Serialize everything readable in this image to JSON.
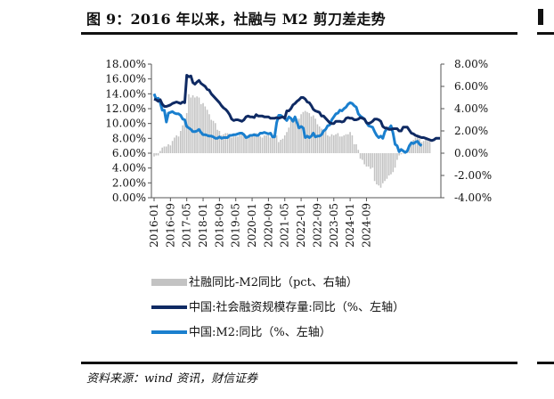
{
  "figure": {
    "title": "图 9：2016 年以来，社融与 M2 剪刀差走势",
    "source": "资料来源：wind 资讯，财信证券"
  },
  "chart_data": {
    "type": "line",
    "title": "",
    "x_ticks": [
      "2016-01",
      "2016-09",
      "2017-05",
      "2018-01",
      "2018-09",
      "2019-05",
      "2020-01",
      "2020-09",
      "2021-05",
      "2022-01",
      "2022-09",
      "2023-05",
      "2024-01",
      "2024-09"
    ],
    "ylim_left": [
      0,
      18
    ],
    "ylim_right": [
      -4,
      8
    ],
    "y_ticks_left": [
      "0.00%",
      "2.00%",
      "4.00%",
      "6.00%",
      "8.00%",
      "10.00%",
      "12.00%",
      "14.00%",
      "16.00%",
      "18.00%"
    ],
    "y_ticks_right": [
      "-4.00%",
      "-2.00%",
      "0.00%",
      "2.00%",
      "4.00%",
      "6.00%",
      "8.00%"
    ],
    "legend_position": "bottom",
    "grid": false,
    "series": [
      {
        "name": "社融同比-M2同比（pct、右轴）",
        "kind": "bar",
        "axis": "right",
        "color": "#c3c3c3",
        "values": [
          -0.3,
          -0.2,
          -0.2,
          0.2,
          0.5,
          0.6,
          0.6,
          0.8,
          0.7,
          1.1,
          1.4,
          1.6,
          1.5,
          2.0,
          2.5,
          2.8,
          3.6,
          5.3,
          5.0,
          5.2,
          5.0,
          5.1,
          5.0,
          4.4,
          4.5,
          4.2,
          3.9,
          3.5,
          3.0,
          2.9,
          2.7,
          2.1,
          2.0,
          1.6,
          1.7,
          1.8,
          1.8,
          1.6,
          1.4,
          1.6,
          1.5,
          1.5,
          1.7,
          1.8,
          1.8,
          1.6,
          1.5,
          1.6,
          1.7,
          1.8,
          1.8,
          1.7,
          1.5,
          1.4,
          1.6,
          1.6,
          1.6,
          1.4,
          1.6,
          1.5,
          1.6,
          1.0,
          1.2,
          1.3,
          1.6,
          1.9,
          2.3,
          3.0,
          3.0,
          3.1,
          3.1,
          3.1,
          3.5,
          3.7,
          3.8,
          3.7,
          3.6,
          3.3,
          3.4,
          3.1,
          2.6,
          2.4,
          2.2,
          2.1,
          2.0,
          1.6,
          1.5,
          1.7,
          1.6,
          1.7,
          1.8,
          1.5,
          1.5,
          1.6,
          1.7,
          1.7,
          1.9,
          1.6,
          0.8,
          0.8,
          0.3,
          -0.5,
          -0.6,
          -1.0,
          -1.2,
          -1.2,
          -1.4,
          -1.3,
          -2.5,
          -2.8,
          -2.9,
          -3.1,
          -2.7,
          -2.5,
          -2.3,
          -2.0,
          -1.9,
          -1.7,
          -1.3,
          -0.6,
          -0.2,
          -0.1,
          0.0,
          0.1,
          0.3,
          0.8,
          0.8,
          1.2,
          1.4,
          1.5,
          1.3,
          1.0,
          1.1,
          1.2,
          1.1,
          1.2
        ]
      },
      {
        "name": "中国:社会融资规模存量:同比（%、左轴）",
        "kind": "line",
        "axis": "left",
        "color": "#0f2a63",
        "values": [
          13.3,
          13.2,
          13.0,
          13.2,
          12.6,
          12.3,
          12.3,
          12.4,
          12.5,
          12.7,
          12.8,
          12.9,
          12.8,
          12.7,
          12.9,
          12.8,
          16.5,
          16.3,
          16.4,
          15.5,
          15.3,
          15.6,
          15.8,
          15.4,
          15.2,
          15.0,
          14.6,
          14.5,
          14.0,
          13.7,
          13.4,
          13.1,
          12.8,
          12.4,
          12.1,
          11.9,
          11.6,
          11.2,
          10.6,
          10.4,
          10.5,
          10.5,
          10.4,
          10.3,
          10.5,
          10.9,
          11.0,
          10.9,
          10.9,
          10.8,
          11.2,
          11.0,
          11.0,
          11.0,
          10.9,
          10.9,
          10.9,
          10.7,
          10.7,
          10.7,
          10.8,
          10.7,
          10.8,
          10.9,
          10.7,
          11.7,
          11.7,
          12.0,
          12.5,
          12.7,
          13.0,
          13.2,
          13.5,
          13.5,
          13.3,
          12.9,
          12.8,
          12.4,
          11.9,
          11.7,
          11.6,
          11.5,
          11.0,
          11.0,
          10.7,
          10.4,
          10.1,
          10.0,
          10.0,
          10.3,
          10.3,
          10.3,
          10.2,
          10.3,
          10.7,
          10.8,
          10.7,
          10.7,
          10.5,
          10.5,
          10.6,
          10.8,
          10.7,
          10.6,
          10.1,
          10.0,
          10.1,
          10.3,
          10.6,
          10.6,
          10.5,
          10.3,
          9.6,
          9.4,
          9.4,
          9.2,
          9.2,
          9.3,
          9.3,
          9.3,
          9.0,
          9.0,
          9.5,
          9.5,
          9.5,
          9.1,
          8.7,
          8.6,
          8.4,
          8.3,
          8.2,
          8.1,
          8.1,
          8.0,
          7.9,
          7.8,
          7.7,
          7.8,
          8.0,
          8.0,
          8.0
        ]
      },
      {
        "name": "中国:M2:同比（%、左轴）",
        "kind": "line",
        "axis": "left",
        "color": "#1a7fce",
        "values": [
          14.0,
          13.3,
          13.4,
          12.8,
          11.8,
          11.8,
          10.2,
          11.4,
          11.5,
          11.6,
          11.4,
          11.3,
          11.3,
          11.1,
          10.6,
          10.5,
          9.6,
          9.4,
          9.2,
          8.9,
          8.9,
          9.0,
          9.2,
          8.8,
          8.5,
          8.5,
          8.4,
          8.3,
          8.3,
          8.2,
          8.0,
          8.0,
          8.2,
          8.0,
          8.1,
          8.1,
          8.1,
          8.4,
          8.4,
          8.5,
          8.5,
          8.6,
          8.7,
          8.7,
          8.5,
          8.1,
          8.2,
          8.4,
          8.4,
          8.5,
          8.4,
          8.4,
          8.7,
          8.7,
          8.8,
          8.7,
          8.6,
          8.7,
          8.2,
          8.2,
          10.1,
          11.1,
          11.1,
          10.9,
          10.7,
          10.4,
          10.9,
          10.7,
          10.3,
          10.9,
          10.1,
          9.4,
          9.6,
          9.4,
          8.1,
          8.3,
          8.1,
          8.3,
          8.7,
          8.2,
          8.3,
          8.3,
          8.5,
          9.0,
          9.2,
          9.7,
          9.8,
          10.5,
          10.9,
          11.3,
          11.4,
          11.8,
          11.7,
          12.0,
          12.2,
          12.6,
          12.8,
          12.7,
          12.4,
          12.2,
          11.3,
          11.0,
          10.8,
          10.6,
          10.1,
          9.7,
          9.6,
          9.5,
          8.9,
          8.4,
          8.1,
          8.3,
          8.0,
          8.9,
          9.3,
          9.3,
          9.7,
          8.7,
          7.2,
          7.0,
          6.2,
          6.5,
          6.3,
          6.1,
          6.3,
          7.0,
          7.4,
          7.3,
          7.5,
          7.6,
          7.2,
          7.0
        ]
      }
    ]
  }
}
